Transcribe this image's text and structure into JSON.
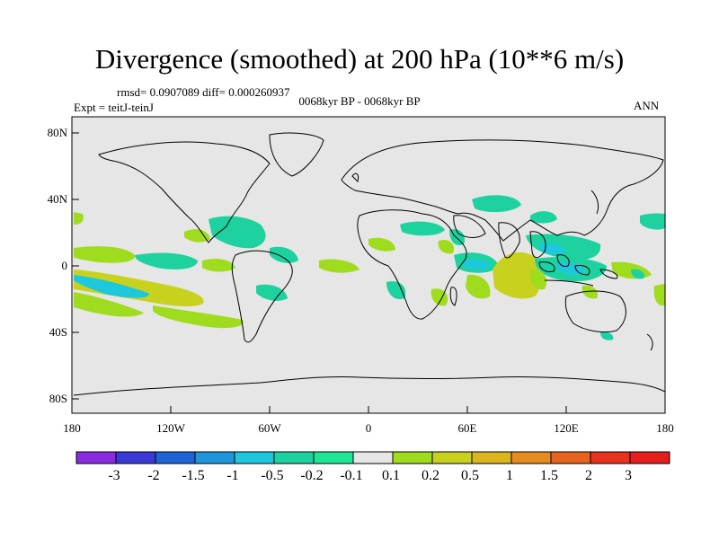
{
  "title": "Divergence (smoothed) at 200 hPa (10**6 m/s)",
  "stats": "rmsd= 0.0907089 diff= 0.000260937",
  "period": "0068kyr BP - 0068kyr BP",
  "experiment": "Expt = teitJ-teinJ",
  "season": "ANN",
  "lat_labels": [
    "80N",
    "40N",
    "0",
    "40S",
    "80S"
  ],
  "lon_labels": [
    "180",
    "120W",
    "60W",
    "0",
    "60E",
    "120E",
    "180"
  ],
  "colorbar": {
    "labels": [
      "-3",
      "-2",
      "-1.5",
      "-1",
      "-0.5",
      "-0.2",
      "-0.1",
      "0.1",
      "0.2",
      "0.5",
      "1",
      "1.5",
      "2",
      "3"
    ],
    "colors": [
      "#8a2be2",
      "#3a3ad8",
      "#1e64d8",
      "#1e96dc",
      "#1ec8dc",
      "#1ed2a0",
      "#1ee696",
      "#e6e6e6",
      "#a0dc1e",
      "#c8d21e",
      "#dcb41e",
      "#e68c1e",
      "#e6641e",
      "#e6321e",
      "#e61e1e"
    ]
  },
  "colors": {
    "background": "#e6e6e6",
    "green": "#a0dc1e",
    "olive": "#c8d21e",
    "cyan": "#1ed2a0",
    "teal": "#1ec8dc"
  }
}
